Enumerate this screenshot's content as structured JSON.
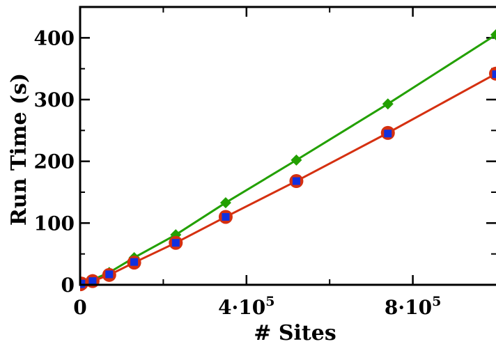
{
  "chart_data": {
    "type": "line",
    "xlabel": "# Sites",
    "ylabel": "Run Time (s)",
    "xlim": [
      0,
      1000000
    ],
    "ylim": [
      0,
      450
    ],
    "x_ticks": [
      0,
      400000,
      800000
    ],
    "x_tick_labels": [
      {
        "base": "0",
        "exp": ""
      },
      {
        "base": "4·10",
        "exp": "5"
      },
      {
        "base": "8·10",
        "exp": "5"
      }
    ],
    "y_ticks": [
      0,
      100,
      200,
      300,
      400
    ],
    "y_tick_labels": [
      "0",
      "100",
      "200",
      "300",
      "400"
    ],
    "series": [
      {
        "color": "#22a000",
        "marker": "diamond",
        "x": [
          1000,
          3000,
          30000,
          70000,
          130000,
          230000,
          350000,
          520000,
          740000,
          1000000
        ],
        "y": [
          1,
          3,
          8,
          20,
          44,
          81,
          133,
          202,
          293,
          405
        ]
      },
      {
        "color": "#d53010",
        "marker": "circle",
        "x": [
          1000,
          3000,
          30000,
          70000,
          130000,
          230000,
          350000,
          520000,
          740000,
          1000000
        ],
        "y": [
          1,
          2,
          6,
          16,
          36,
          68,
          110,
          168,
          246,
          342
        ]
      },
      {
        "color": "#1030e0",
        "marker": "square",
        "x": [
          1000,
          3000,
          30000,
          70000,
          130000,
          230000,
          350000,
          520000,
          740000,
          1000000
        ],
        "y": [
          1,
          2,
          6,
          17,
          37,
          68,
          110,
          168,
          245,
          341
        ]
      }
    ]
  }
}
